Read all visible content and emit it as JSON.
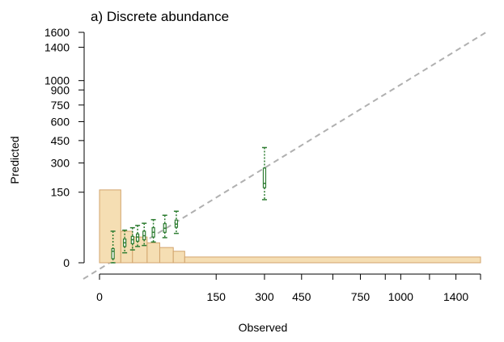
{
  "chart_data": {
    "type": "boxplot",
    "title": "a) Discrete abundance",
    "xlabel": "Observed",
    "ylabel": "Predicted",
    "scale": "sqrt",
    "xlim": [
      0,
      1600
    ],
    "ylim": [
      0,
      1600
    ],
    "x_ticks": [
      0,
      150,
      300,
      450,
      600,
      750,
      900,
      1000,
      1200,
      1400,
      1600
    ],
    "x_tick_labels": [
      "0",
      "150",
      "300",
      "450",
      "",
      "750",
      "",
      "1000",
      "",
      "1400",
      ""
    ],
    "y_ticks": [
      0,
      150,
      300,
      450,
      600,
      750,
      900,
      1000,
      1400,
      1600
    ],
    "y_tick_labels": [
      "0",
      "150",
      "300",
      "450",
      "600",
      "750",
      "900",
      "1000",
      "1400",
      "1600"
    ],
    "reference_line": "1:1",
    "colors": {
      "box": "#2e7d32",
      "whisker": "#2e7d32",
      "histogram_fill": "#f5deb3",
      "histogram_edge": "#d2a46c",
      "reference": "#b0b0b0"
    },
    "boxes": [
      {
        "observed": 2,
        "low": 0,
        "q1": 0.5,
        "median": 4,
        "q3": 6,
        "high": 30
      },
      {
        "observed": 7,
        "low": 3,
        "q1": 8,
        "median": 12,
        "q3": 17,
        "high": 32
      },
      {
        "observed": 12,
        "low": 5,
        "q1": 11,
        "median": 16,
        "q3": 21,
        "high": 37
      },
      {
        "observed": 16,
        "low": 8,
        "q1": 14,
        "median": 20,
        "q3": 25,
        "high": 42
      },
      {
        "observed": 22,
        "low": 9,
        "q1": 16,
        "median": 22,
        "q3": 30,
        "high": 47
      },
      {
        "observed": 32,
        "low": 13,
        "q1": 20,
        "median": 28,
        "q3": 37,
        "high": 56
      },
      {
        "observed": 47,
        "low": 19,
        "q1": 28,
        "median": 36,
        "q3": 46,
        "high": 68
      },
      {
        "observed": 65,
        "low": 26,
        "q1": 38,
        "median": 45,
        "q3": 55,
        "high": 80
      },
      {
        "observed": 300,
        "low": 120,
        "q1": 170,
        "median": 190,
        "q3": 270,
        "high": 400
      }
    ],
    "histogram": {
      "bins": [
        [
          0,
          5,
          160
        ],
        [
          5,
          12,
          30
        ],
        [
          12,
          25,
          20
        ],
        [
          25,
          40,
          12
        ],
        [
          40,
          60,
          7
        ],
        [
          60,
          80,
          4
        ],
        [
          80,
          1600,
          1
        ]
      ]
    }
  }
}
